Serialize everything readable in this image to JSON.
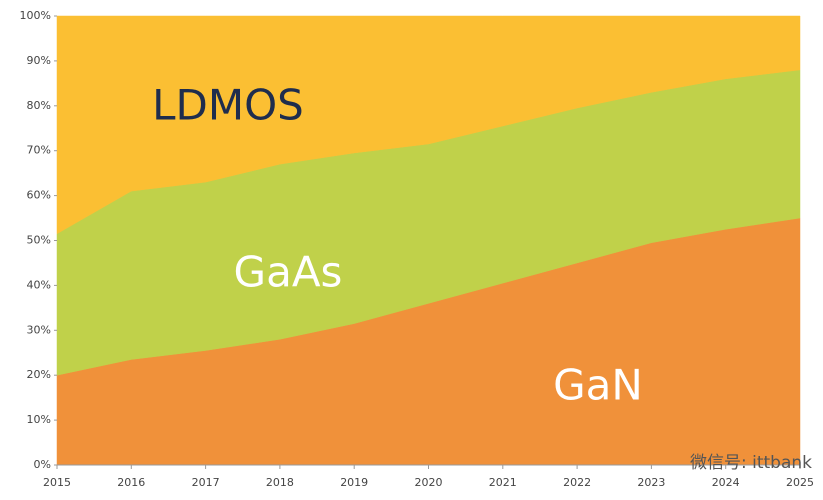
{
  "chart_data": {
    "type": "stacked_area",
    "x": [
      2015,
      2016,
      2017,
      2018,
      2019,
      2020,
      2021,
      2022,
      2023,
      2024,
      2025
    ],
    "series": [
      {
        "name": "GaN",
        "color": "#f0913a",
        "values": [
          20,
          23.5,
          25.5,
          28,
          31.5,
          36,
          40.5,
          45,
          49.5,
          52.5,
          55
        ]
      },
      {
        "name": "GaAs",
        "color": "#c0d14a",
        "values": [
          31.5,
          37.5,
          37.5,
          39,
          38,
          35.5,
          35,
          34.5,
          33.5,
          33.5,
          33
        ]
      },
      {
        "name": "LDMOS",
        "color": "#fbbf33",
        "values": [
          48.5,
          39,
          37,
          33,
          30.5,
          28.5,
          24.5,
          20.5,
          17,
          14,
          12
        ]
      }
    ],
    "xlim": [
      2015,
      2025
    ],
    "xticks": [
      2015,
      2016,
      2017,
      2018,
      2019,
      2020,
      2021,
      2022,
      2023,
      2024,
      2025
    ],
    "ylim": [
      0,
      100
    ],
    "yticks": [
      {
        "value": 0,
        "label": "0%"
      },
      {
        "value": 10,
        "label": "10%"
      },
      {
        "value": 20,
        "label": "20%"
      },
      {
        "value": 30,
        "label": "30%"
      },
      {
        "value": 40,
        "label": "40%"
      },
      {
        "value": 50,
        "label": "50%"
      },
      {
        "value": 60,
        "label": "60%"
      },
      {
        "value": 70,
        "label": "70%"
      },
      {
        "value": 80,
        "label": "80%"
      },
      {
        "value": 90,
        "label": "90%"
      },
      {
        "value": 100,
        "label": "100%"
      }
    ],
    "watermark": "微信号: ittbank"
  }
}
